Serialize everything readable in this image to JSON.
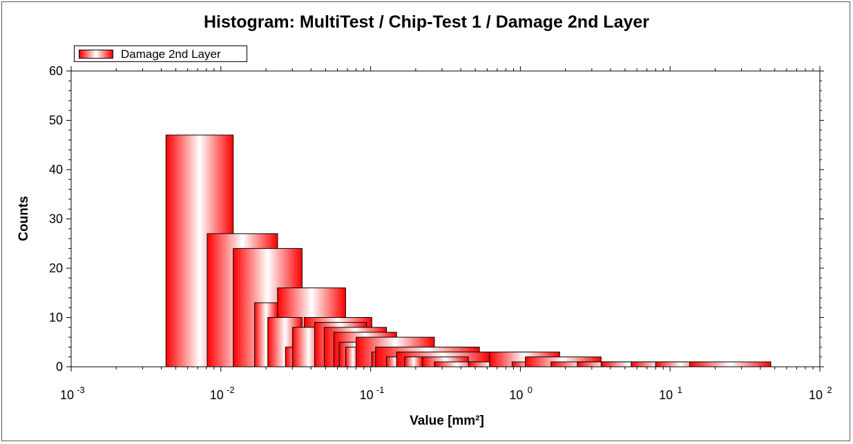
{
  "chart_data": {
    "type": "bar",
    "title": "Histogram: MultiTest / Chip-Test 1 / Damage 2nd Layer",
    "xlabel": "Value [mm²]",
    "ylabel": "Counts",
    "xscale": "log",
    "xlim": [
      0.001,
      100
    ],
    "ylim": [
      0,
      60
    ],
    "legend_position": "top-left",
    "grid": false,
    "x_tick_labels": [
      {
        "base": "10",
        "exp": "-3",
        "value": 0.001
      },
      {
        "base": "10",
        "exp": "-2",
        "value": 0.01
      },
      {
        "base": "10",
        "exp": "-1",
        "value": 0.1
      },
      {
        "base": "10",
        "exp": "0",
        "value": 1
      },
      {
        "base": "10",
        "exp": "1",
        "value": 10
      },
      {
        "base": "10",
        "exp": "2",
        "value": 100
      }
    ],
    "y_tick_labels": [
      "0",
      "10",
      "20",
      "30",
      "40",
      "50",
      "60"
    ],
    "colors": {
      "bar_edge": "#ff0000",
      "bar_center": "#ffffff",
      "outline": "#000000"
    },
    "series": [
      {
        "name": "Damage 2nd Layer",
        "bars": [
          {
            "x0": 0.0043,
            "x1": 0.0121,
            "count": 47
          },
          {
            "x0": 0.0081,
            "x1": 0.0239,
            "count": 27
          },
          {
            "x0": 0.0121,
            "x1": 0.0349,
            "count": 24
          },
          {
            "x0": 0.0168,
            "x1": 0.0239,
            "count": 13
          },
          {
            "x0": 0.0239,
            "x1": 0.0681,
            "count": 16
          },
          {
            "x0": 0.0206,
            "x1": 0.0349,
            "count": 10
          },
          {
            "x0": 0.036,
            "x1": 0.1018,
            "count": 10
          },
          {
            "x0": 0.027,
            "x1": 0.0423,
            "count": 4
          },
          {
            "x0": 0.0301,
            "x1": 0.049,
            "count": 8
          },
          {
            "x0": 0.0423,
            "x1": 0.0939,
            "count": 9
          },
          {
            "x0": 0.049,
            "x1": 0.1276,
            "count": 8
          },
          {
            "x0": 0.0567,
            "x1": 0.149,
            "count": 7
          },
          {
            "x0": 0.0616,
            "x1": 0.1018,
            "count": 5
          },
          {
            "x0": 0.0681,
            "x1": 0.0852,
            "count": 4
          },
          {
            "x0": 0.08,
            "x1": 0.2665,
            "count": 6
          },
          {
            "x0": 0.1018,
            "x1": 0.149,
            "count": 3
          },
          {
            "x0": 0.108,
            "x1": 0.533,
            "count": 4
          },
          {
            "x0": 0.1276,
            "x1": 0.1686,
            "count": 2
          },
          {
            "x0": 0.149,
            "x1": 0.622,
            "count": 3
          },
          {
            "x0": 0.1686,
            "x1": 0.222,
            "count": 2
          },
          {
            "x0": 0.222,
            "x1": 0.45,
            "count": 2
          },
          {
            "x0": 0.2665,
            "x1": 0.533,
            "count": 1
          },
          {
            "x0": 0.45,
            "x1": 0.88,
            "count": 1
          },
          {
            "x0": 0.622,
            "x1": 1.83,
            "count": 3
          },
          {
            "x0": 0.88,
            "x1": 1.6,
            "count": 1
          },
          {
            "x0": 1.08,
            "x1": 3.46,
            "count": 2
          },
          {
            "x0": 1.6,
            "x1": 4.1,
            "count": 1
          },
          {
            "x0": 2.4,
            "x1": 5.5,
            "count": 1
          },
          {
            "x0": 3.46,
            "x1": 8.0,
            "count": 1
          },
          {
            "x0": 5.5,
            "x1": 12.5,
            "count": 1
          },
          {
            "x0": 8.0,
            "x1": 17.5,
            "count": 1
          },
          {
            "x0": 13.5,
            "x1": 47.0,
            "count": 1
          }
        ]
      }
    ]
  }
}
